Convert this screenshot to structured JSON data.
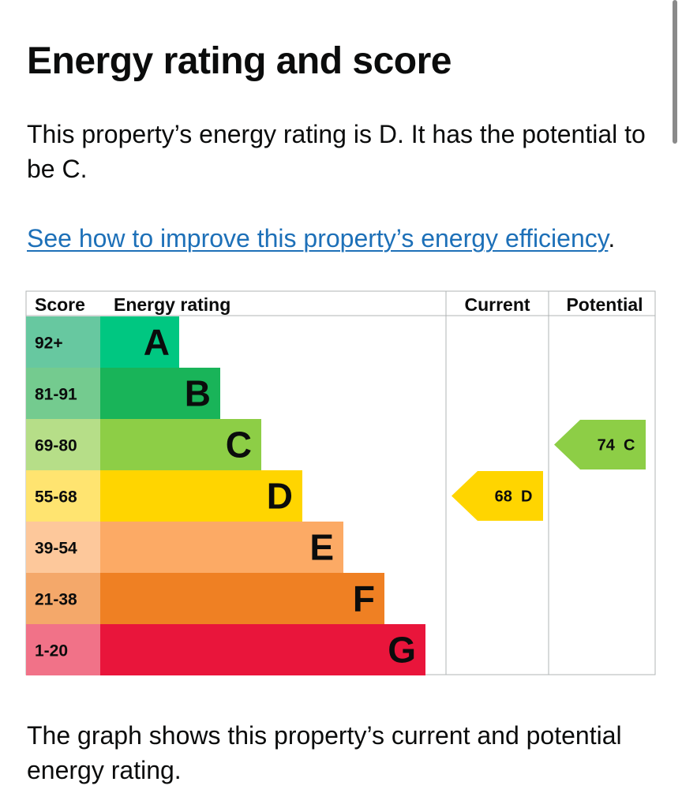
{
  "heading": "Energy rating and score",
  "summary": "This property’s energy rating is D. It has the potential to be C.",
  "improve_link": "See how to improve this property’s energy efficiency",
  "improve_suffix": ".",
  "footer": "The graph shows this property’s current and potential energy rating.",
  "chart_data": {
    "type": "table",
    "headers": {
      "score": "Score",
      "rating": "Energy rating",
      "current": "Current",
      "potential": "Potential"
    },
    "bands": [
      {
        "letter": "A",
        "range": "92+",
        "color": "#00c781",
        "score_color": "#67c8a0"
      },
      {
        "letter": "B",
        "range": "81-91",
        "color": "#19b459",
        "score_color": "#74cb8f"
      },
      {
        "letter": "C",
        "range": "69-80",
        "color": "#8dce46",
        "score_color": "#b6de88"
      },
      {
        "letter": "D",
        "range": "55-68",
        "color": "#ffd500",
        "score_color": "#ffe470"
      },
      {
        "letter": "E",
        "range": "39-54",
        "color": "#fcaa65",
        "score_color": "#fdc89b"
      },
      {
        "letter": "F",
        "range": "21-38",
        "color": "#ef8023",
        "score_color": "#f4a86a"
      },
      {
        "letter": "G",
        "range": "1-20",
        "color": "#e9153b",
        "score_color": "#f17288"
      }
    ],
    "current": {
      "score": 68,
      "band": "D",
      "label": "68  D",
      "color": "#ffd500"
    },
    "potential": {
      "score": 74,
      "band": "C",
      "label": "74  C",
      "color": "#8dce46"
    }
  }
}
